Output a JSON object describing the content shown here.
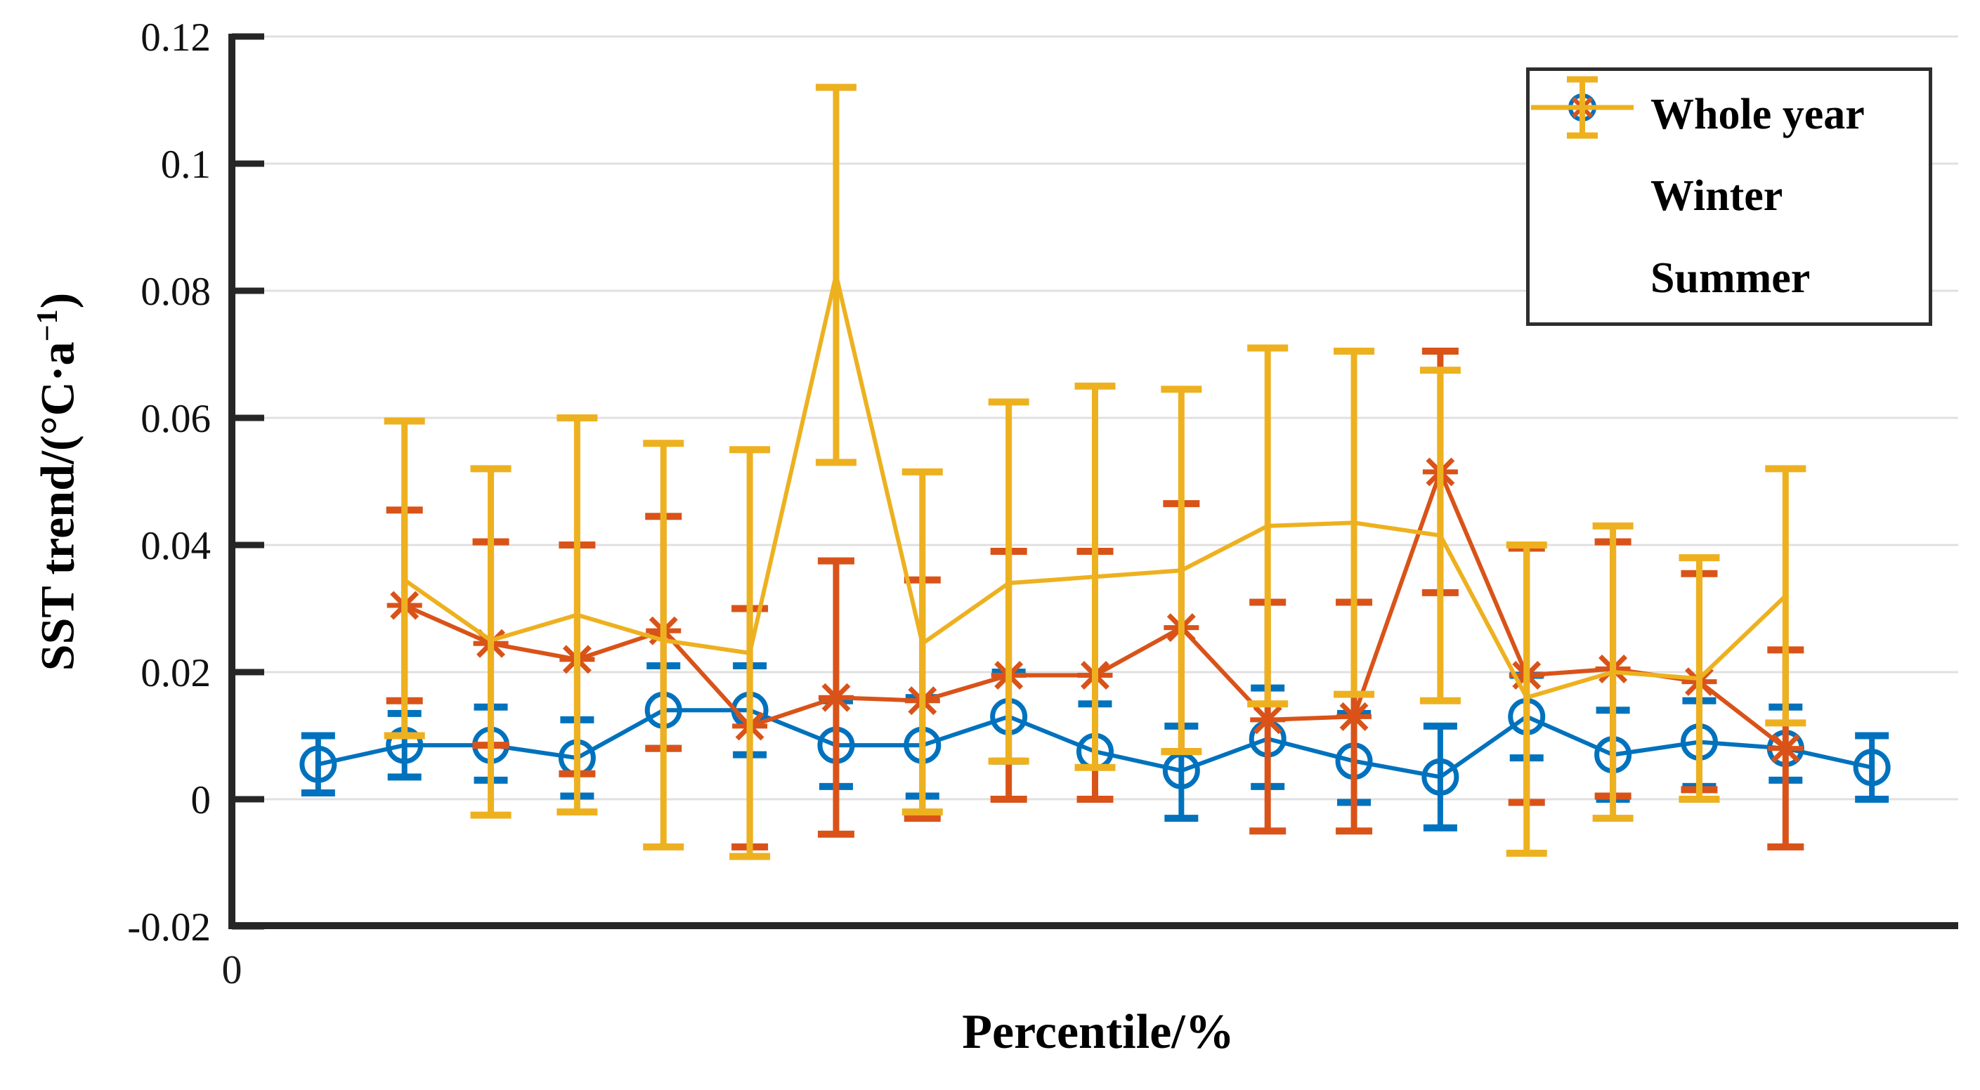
{
  "chart_data": {
    "type": "line",
    "subtype": "errorbar",
    "title": "",
    "xlabel": "Percentile/%",
    "ylabel": "SST trend/(°C·a⁻¹)",
    "ylabel_parts": {
      "prefix": "SST trend/(°C·a",
      "sup": "−1",
      "suffix": ")"
    },
    "xlim": [
      0,
      100
    ],
    "ylim": [
      -0.02,
      0.12
    ],
    "grid": "horizontal",
    "legend_position": "top-right",
    "xticks": [
      {
        "v": 0,
        "label": "0"
      }
    ],
    "yticks": [
      {
        "v": -0.02,
        "label": "-0.02"
      },
      {
        "v": 0,
        "label": "0"
      },
      {
        "v": 0.02,
        "label": "0.02"
      },
      {
        "v": 0.04,
        "label": "0.04"
      },
      {
        "v": 0.06,
        "label": "0.06"
      },
      {
        "v": 0.08,
        "label": "0.08"
      },
      {
        "v": 0.1,
        "label": "0.1"
      },
      {
        "v": 0.12,
        "label": "0.12"
      }
    ],
    "colors": {
      "whole_year": "#0072BD",
      "winter": "#D95319",
      "summer": "#EDB120",
      "grid": "#E0E0E0",
      "axis": "#262626"
    },
    "series": [
      {
        "name": "Whole year",
        "color": "#0072BD",
        "marker": "circle",
        "x": [
          5,
          10,
          15,
          20,
          25,
          30,
          35,
          40,
          45,
          50,
          55,
          60,
          65,
          70,
          75,
          80,
          85,
          90,
          95
        ],
        "y": [
          0.0055,
          0.0085,
          0.0085,
          0.0065,
          0.014,
          0.014,
          0.0085,
          0.0085,
          0.013,
          0.0075,
          0.0045,
          0.0095,
          0.006,
          0.0035,
          0.013,
          0.007,
          0.009,
          0.008,
          0.005
        ],
        "err_lo": [
          0.001,
          0.0035,
          0.003,
          0.0005,
          0.008,
          0.007,
          0.002,
          0.0005,
          0.006,
          0.0,
          -0.003,
          0.002,
          -0.0005,
          -0.0045,
          0.0065,
          0.0,
          0.002,
          0.003,
          0.0
        ],
        "err_hi": [
          0.01,
          0.0135,
          0.0145,
          0.0125,
          0.021,
          0.021,
          0.0155,
          0.016,
          0.02,
          0.015,
          0.0115,
          0.0175,
          0.0135,
          0.0115,
          0.0195,
          0.014,
          0.0155,
          0.0145,
          0.01
        ]
      },
      {
        "name": "Winter",
        "color": "#D95319",
        "marker": "asterisk",
        "x": [
          10,
          15,
          20,
          25,
          30,
          35,
          40,
          45,
          50,
          55,
          60,
          65,
          70,
          75,
          80,
          85,
          90
        ],
        "y": [
          0.0305,
          0.0245,
          0.022,
          0.0265,
          0.0115,
          0.016,
          0.0155,
          0.0195,
          0.0195,
          0.027,
          0.0125,
          0.013,
          0.0515,
          0.0195,
          0.0205,
          0.0185,
          0.008
        ],
        "err_lo": [
          0.0155,
          0.0085,
          0.004,
          0.008,
          -0.0075,
          -0.0055,
          -0.003,
          0.0,
          0.0,
          0.0075,
          -0.005,
          -0.005,
          0.0325,
          -0.0005,
          0.0005,
          0.0015,
          -0.0075
        ],
        "err_hi": [
          0.0455,
          0.0405,
          0.04,
          0.0445,
          0.03,
          0.0375,
          0.0345,
          0.039,
          0.039,
          0.0465,
          0.031,
          0.031,
          0.0705,
          0.0395,
          0.0405,
          0.0355,
          0.0235
        ]
      },
      {
        "name": "Summer",
        "color": "#EDB120",
        "marker": "none",
        "x": [
          10,
          15,
          20,
          25,
          30,
          35,
          40,
          45,
          50,
          55,
          60,
          65,
          70,
          75,
          80,
          85,
          90
        ],
        "y": [
          0.0345,
          0.025,
          0.029,
          0.025,
          0.023,
          0.0825,
          0.0245,
          0.034,
          0.035,
          0.036,
          0.043,
          0.0435,
          0.0415,
          0.016,
          0.02,
          0.019,
          0.032
        ],
        "err_lo": [
          0.01,
          -0.0025,
          -0.002,
          -0.0075,
          -0.009,
          0.053,
          -0.002,
          0.006,
          0.005,
          0.0075,
          0.015,
          0.0165,
          0.0155,
          -0.0085,
          -0.003,
          0.0,
          0.012
        ],
        "err_hi": [
          0.0595,
          0.052,
          0.06,
          0.056,
          0.055,
          0.112,
          0.0515,
          0.0625,
          0.065,
          0.0645,
          0.071,
          0.0705,
          0.0675,
          0.04,
          0.043,
          0.038,
          0.052
        ]
      }
    ]
  },
  "legend": {
    "items": [
      {
        "label": "Whole year"
      },
      {
        "label": "Winter"
      },
      {
        "label": "Summer"
      }
    ]
  }
}
